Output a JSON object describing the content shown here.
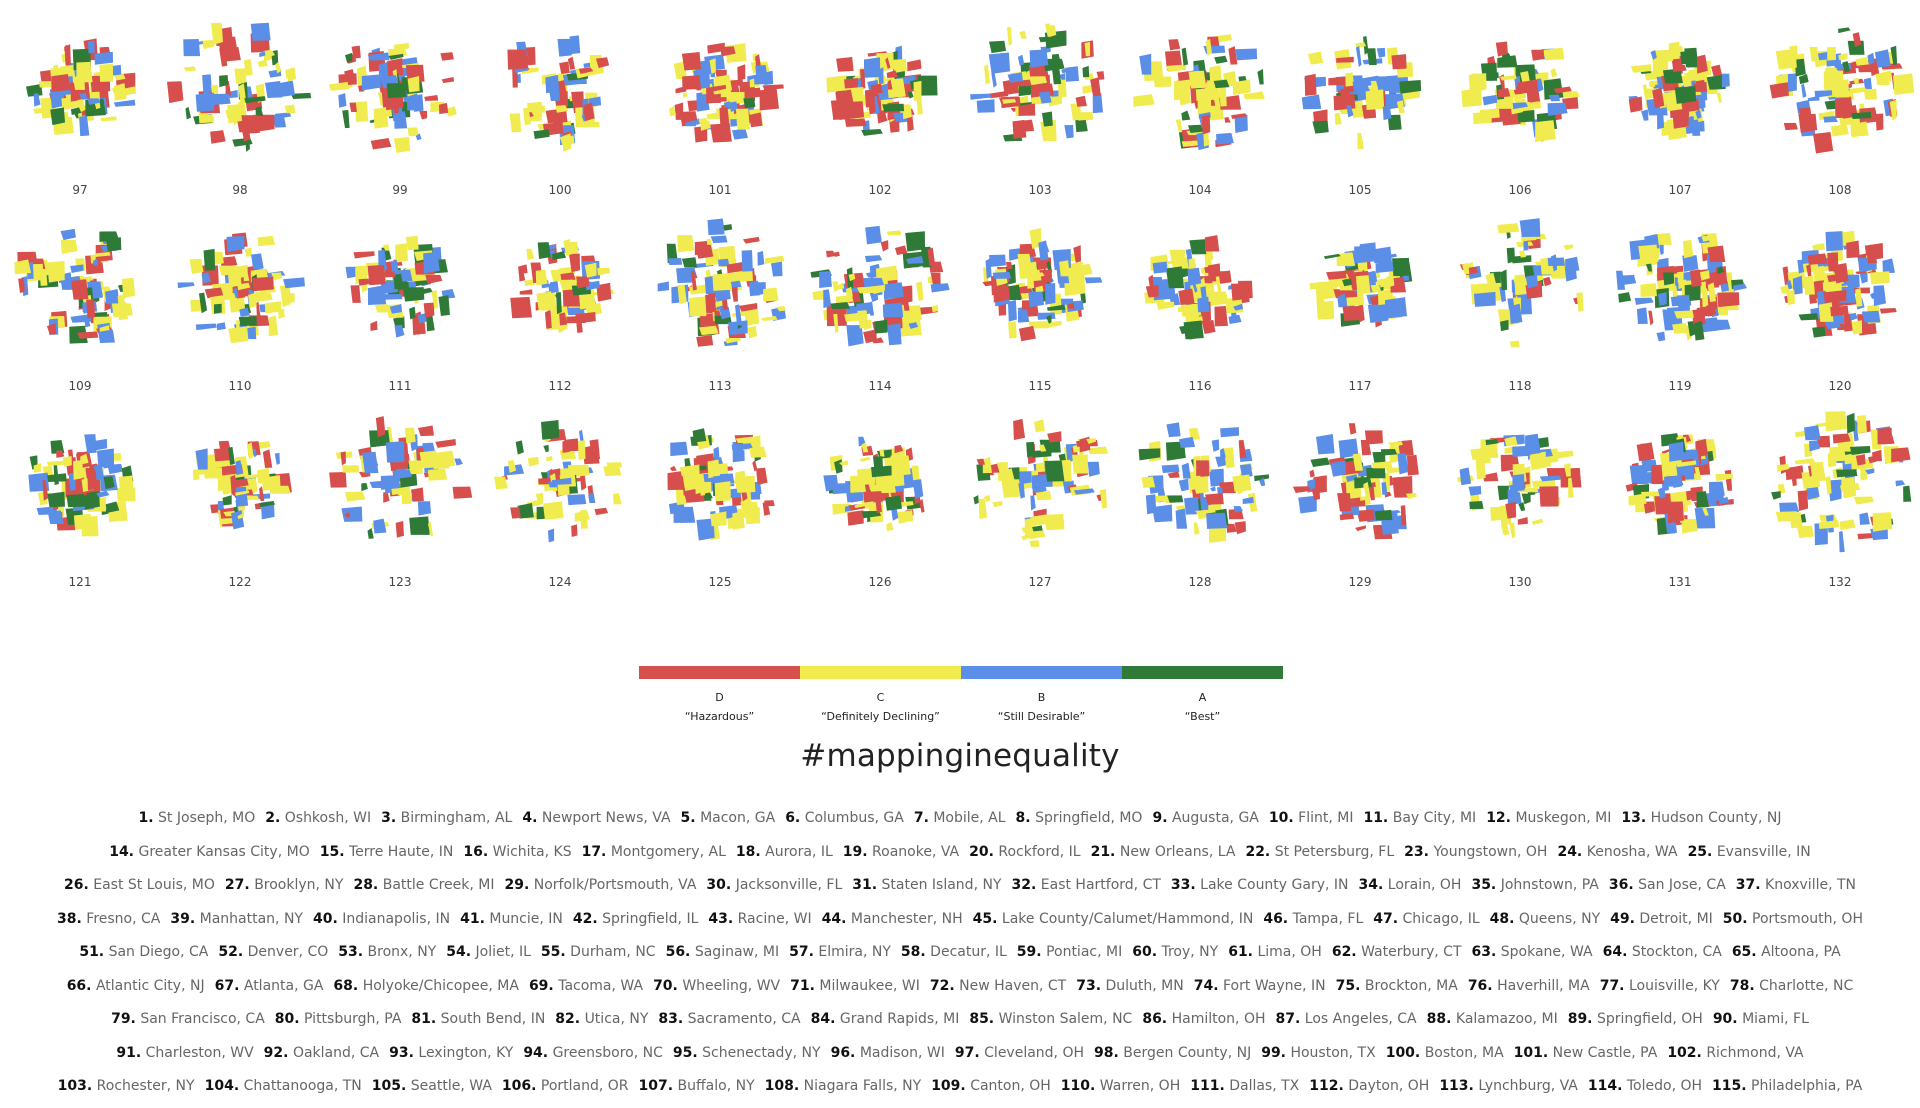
{
  "colors": {
    "D": "#d74f4c",
    "C": "#f0ec4f",
    "B": "#5b8ee6",
    "A": "#2f7a36"
  },
  "maps": [
    {
      "number": "97"
    },
    {
      "number": "98"
    },
    {
      "number": "99"
    },
    {
      "number": "100"
    },
    {
      "number": "101"
    },
    {
      "number": "102"
    },
    {
      "number": "103"
    },
    {
      "number": "104"
    },
    {
      "number": "105"
    },
    {
      "number": "106"
    },
    {
      "number": "107"
    },
    {
      "number": "108"
    },
    {
      "number": "109"
    },
    {
      "number": "110"
    },
    {
      "number": "111"
    },
    {
      "number": "112"
    },
    {
      "number": "113"
    },
    {
      "number": "114"
    },
    {
      "number": "115"
    },
    {
      "number": "116"
    },
    {
      "number": "117"
    },
    {
      "number": "118"
    },
    {
      "number": "119"
    },
    {
      "number": "120"
    },
    {
      "number": "121"
    },
    {
      "number": "122"
    },
    {
      "number": "123"
    },
    {
      "number": "124"
    },
    {
      "number": "125"
    },
    {
      "number": "126"
    },
    {
      "number": "127"
    },
    {
      "number": "128"
    },
    {
      "number": "129"
    },
    {
      "number": "130"
    },
    {
      "number": "131"
    },
    {
      "number": "132"
    }
  ],
  "legend": [
    {
      "grade": "D",
      "label": "“Hazardous”"
    },
    {
      "grade": "C",
      "label": "“Definitely Declining”"
    },
    {
      "grade": "B",
      "label": "“Still Desirable”"
    },
    {
      "grade": "A",
      "label": "“Best”"
    }
  ],
  "hashtag": "#mappinginequality",
  "city_lines": [
    [
      [
        "1.",
        "St Joseph, MO"
      ],
      [
        "2.",
        "Oshkosh, WI"
      ],
      [
        "3.",
        "Birmingham, AL"
      ],
      [
        "4.",
        "Newport News, VA"
      ],
      [
        "5.",
        "Macon, GA"
      ],
      [
        "6.",
        "Columbus, GA"
      ],
      [
        "7.",
        "Mobile, AL"
      ],
      [
        "8.",
        "Springfield, MO"
      ],
      [
        "9.",
        "Augusta, GA"
      ],
      [
        "10.",
        "Flint, MI"
      ],
      [
        "11.",
        "Bay City, MI"
      ],
      [
        "12.",
        "Muskegon, MI"
      ],
      [
        "13.",
        "Hudson County, NJ"
      ]
    ],
    [
      [
        "14.",
        "Greater Kansas City, MO"
      ],
      [
        "15.",
        "Terre Haute, IN"
      ],
      [
        "16.",
        "Wichita, KS"
      ],
      [
        "17.",
        "Montgomery, AL"
      ],
      [
        "18.",
        "Aurora, IL"
      ],
      [
        "19.",
        "Roanoke, VA"
      ],
      [
        "20.",
        "Rockford, IL"
      ],
      [
        "21.",
        "New Orleans, LA"
      ],
      [
        "22.",
        "St Petersburg, FL"
      ],
      [
        "23.",
        "Youngstown, OH"
      ],
      [
        "24.",
        "Kenosha, WA"
      ],
      [
        "25.",
        "Evansville, IN"
      ]
    ],
    [
      [
        "26.",
        "East St Louis, MO"
      ],
      [
        "27.",
        "Brooklyn, NY"
      ],
      [
        "28.",
        "Battle Creek, MI"
      ],
      [
        "29.",
        "Norfolk/Portsmouth, VA"
      ],
      [
        "30.",
        "Jacksonville, FL"
      ],
      [
        "31.",
        "Staten Island, NY"
      ],
      [
        "32.",
        "East Hartford, CT"
      ],
      [
        "33.",
        "Lake County Gary, IN"
      ],
      [
        "34.",
        "Lorain, OH"
      ],
      [
        "35.",
        "Johnstown, PA"
      ],
      [
        "36.",
        "San Jose, CA"
      ],
      [
        "37.",
        "Knoxville, TN"
      ]
    ],
    [
      [
        "38.",
        "Fresno, CA"
      ],
      [
        "39.",
        "Manhattan, NY"
      ],
      [
        "40.",
        "Indianapolis, IN"
      ],
      [
        "41.",
        "Muncie, IN"
      ],
      [
        "42.",
        "Springfield, IL"
      ],
      [
        "43.",
        "Racine, WI"
      ],
      [
        "44.",
        "Manchester, NH"
      ],
      [
        "45.",
        "Lake County/Calumet/Hammond, IN"
      ],
      [
        "46.",
        "Tampa, FL"
      ],
      [
        "47.",
        "Chicago, IL"
      ],
      [
        "48.",
        "Queens, NY"
      ],
      [
        "49.",
        "Detroit, MI"
      ],
      [
        "50.",
        "Portsmouth, OH"
      ]
    ],
    [
      [
        "51.",
        "San Diego, CA"
      ],
      [
        "52.",
        "Denver, CO"
      ],
      [
        "53.",
        "Bronx, NY"
      ],
      [
        "54.",
        "Joliet, IL"
      ],
      [
        "55.",
        "Durham, NC"
      ],
      [
        "56.",
        "Saginaw, MI"
      ],
      [
        "57.",
        "Elmira, NY"
      ],
      [
        "58.",
        "Decatur, IL"
      ],
      [
        "59.",
        "Pontiac, MI"
      ],
      [
        "60.",
        "Troy, NY"
      ],
      [
        "61.",
        "Lima, OH"
      ],
      [
        "62.",
        "Waterbury, CT"
      ],
      [
        "63.",
        "Spokane, WA"
      ],
      [
        "64.",
        "Stockton, CA"
      ],
      [
        "65.",
        "Altoona, PA"
      ]
    ],
    [
      [
        "66.",
        "Atlantic City, NJ"
      ],
      [
        "67.",
        "Atlanta, GA"
      ],
      [
        "68.",
        "Holyoke/Chicopee, MA"
      ],
      [
        "69.",
        "Tacoma, WA"
      ],
      [
        "70.",
        "Wheeling, WV"
      ],
      [
        "71.",
        "Milwaukee, WI"
      ],
      [
        "72.",
        "New Haven, CT"
      ],
      [
        "73.",
        "Duluth, MN"
      ],
      [
        "74.",
        "Fort Wayne, IN"
      ],
      [
        "75.",
        "Brockton, MA"
      ],
      [
        "76.",
        "Haverhill, MA"
      ],
      [
        "77.",
        "Louisville, KY"
      ],
      [
        "78.",
        "Charlotte, NC"
      ]
    ],
    [
      [
        "79.",
        "San Francisco, CA"
      ],
      [
        "80.",
        "Pittsburgh, PA"
      ],
      [
        "81.",
        "South Bend, IN"
      ],
      [
        "82.",
        "Utica, NY"
      ],
      [
        "83.",
        "Sacramento, CA"
      ],
      [
        "84.",
        "Grand Rapids, MI"
      ],
      [
        "85.",
        "Winston Salem, NC"
      ],
      [
        "86.",
        "Hamilton, OH"
      ],
      [
        "87.",
        "Los Angeles, CA"
      ],
      [
        "88.",
        "Kalamazoo, MI"
      ],
      [
        "89.",
        "Springfield, OH"
      ],
      [
        "90.",
        "Miami, FL"
      ]
    ],
    [
      [
        "91.",
        "Charleston, WV"
      ],
      [
        "92.",
        "Oakland, CA"
      ],
      [
        "93.",
        "Lexington, KY"
      ],
      [
        "94.",
        "Greensboro, NC"
      ],
      [
        "95.",
        "Schenectady, NY"
      ],
      [
        "96.",
        "Madison, WI"
      ],
      [
        "97.",
        "Cleveland, OH"
      ],
      [
        "98.",
        "Bergen County, NJ"
      ],
      [
        "99.",
        "Houston, TX"
      ],
      [
        "100.",
        "Boston, MA"
      ],
      [
        "101.",
        "New Castle, PA"
      ],
      [
        "102.",
        "Richmond, VA"
      ]
    ],
    [
      [
        "103.",
        "Rochester, NY"
      ],
      [
        "104.",
        "Chattanooga, TN"
      ],
      [
        "105.",
        "Seattle, WA"
      ],
      [
        "106.",
        "Portland, OR"
      ],
      [
        "107.",
        "Buffalo, NY"
      ],
      [
        "108.",
        "Niagara Falls, NY"
      ],
      [
        "109.",
        "Canton, OH"
      ],
      [
        "110.",
        "Warren, OH"
      ],
      [
        "111.",
        "Dallas, TX"
      ],
      [
        "112.",
        "Dayton, OH"
      ],
      [
        "113.",
        "Lynchburg, VA"
      ],
      [
        "114.",
        "Toledo, OH"
      ],
      [
        "115.",
        "Philadelphia, PA"
      ]
    ]
  ]
}
